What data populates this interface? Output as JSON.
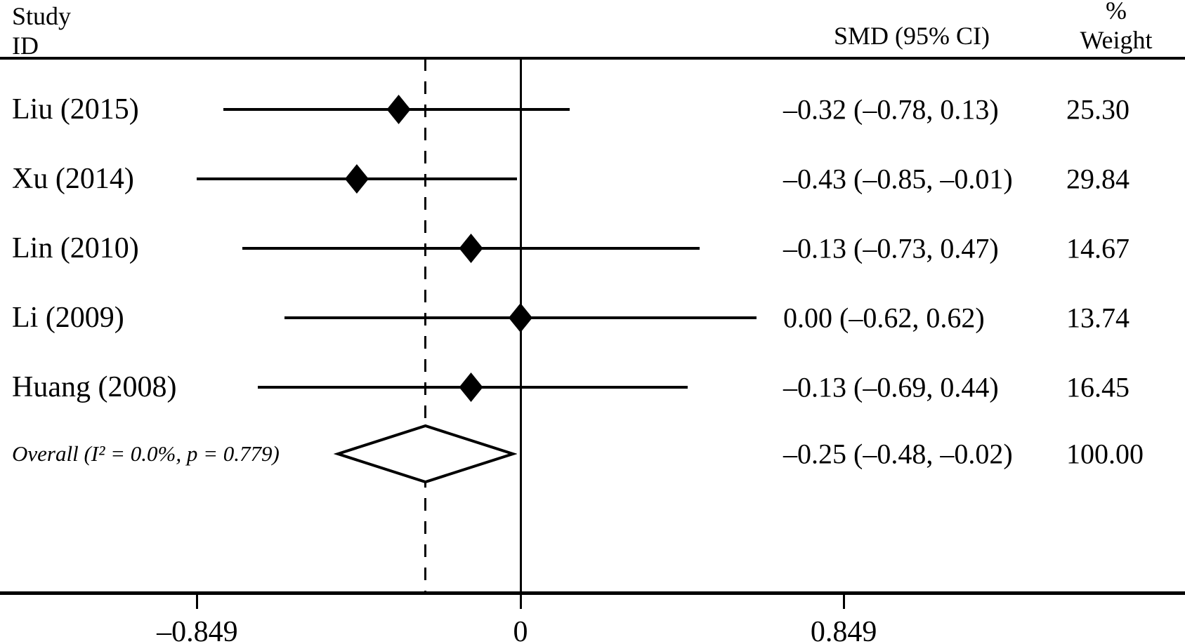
{
  "page": {
    "background": "#ffffff",
    "ink": "#000000"
  },
  "header": {
    "study_col_line1": "Study",
    "study_col_line2": "ID",
    "effect_col": "SMD (95% CI)",
    "weight_col_line1": "%",
    "weight_col_line2": "Weight"
  },
  "chart_data": {
    "type": "forest",
    "title": "",
    "effect_measure": "SMD",
    "x_axis": {
      "ticks": [
        -0.849,
        0,
        0.849
      ],
      "tick_labels": [
        "–0.849",
        "0",
        "0.849"
      ],
      "null_line_value": 0,
      "overall_dashed_line_value": -0.25,
      "grid": false
    },
    "studies": [
      {
        "id": "Liu (2015)",
        "smd": -0.32,
        "ci_low": -0.78,
        "ci_high": 0.13,
        "smd_ci_label": "–0.32 (–0.78, 0.13)",
        "weight": "25.30"
      },
      {
        "id": "Xu (2014)",
        "smd": -0.43,
        "ci_low": -0.85,
        "ci_high": -0.01,
        "smd_ci_label": "–0.43 (–0.85, –0.01)",
        "weight": "29.84"
      },
      {
        "id": "Lin (2010)",
        "smd": -0.13,
        "ci_low": -0.73,
        "ci_high": 0.47,
        "smd_ci_label": "–0.13 (–0.73, 0.47)",
        "weight": "14.67"
      },
      {
        "id": "Li (2009)",
        "smd": 0.0,
        "ci_low": -0.62,
        "ci_high": 0.62,
        "smd_ci_label": "0.00 (–0.62, 0.62)",
        "weight": "13.74"
      },
      {
        "id": "Huang (2008)",
        "smd": -0.13,
        "ci_low": -0.69,
        "ci_high": 0.44,
        "smd_ci_label": "–0.13 (–0.69, 0.44)",
        "weight": "16.45"
      }
    ],
    "overall": {
      "id": "Overall (I² = 0.0%, p = 0.779)",
      "smd": -0.25,
      "ci_low": -0.48,
      "ci_high": -0.02,
      "smd_ci_label": "–0.25 (–0.48, –0.02)",
      "weight": "100.00"
    }
  },
  "colors": {
    "ink": "#000000",
    "background": "#ffffff"
  }
}
